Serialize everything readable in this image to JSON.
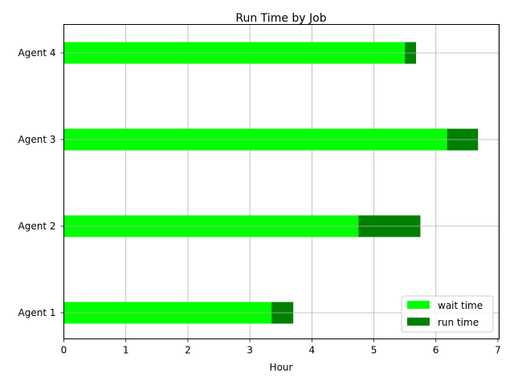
{
  "chart_data": {
    "type": "bar",
    "orientation": "horizontal",
    "stacked": true,
    "title": "Run Time by Job",
    "xlabel": "Hour",
    "ylabel": "",
    "categories": [
      "Agent 1",
      "Agent 2",
      "Agent 3",
      "Agent 4"
    ],
    "xlim": [
      0,
      7.02
    ],
    "xticks": [
      0,
      1,
      2,
      3,
      4,
      5,
      6,
      7
    ],
    "grid": true,
    "legend_position": "lower right",
    "series": [
      {
        "name": "wait time",
        "color": "#00ff00",
        "values": [
          3.35,
          4.75,
          6.18,
          5.5
        ]
      },
      {
        "name": "run time",
        "color": "#008000",
        "values": [
          0.35,
          1.0,
          0.5,
          0.18
        ]
      }
    ]
  }
}
